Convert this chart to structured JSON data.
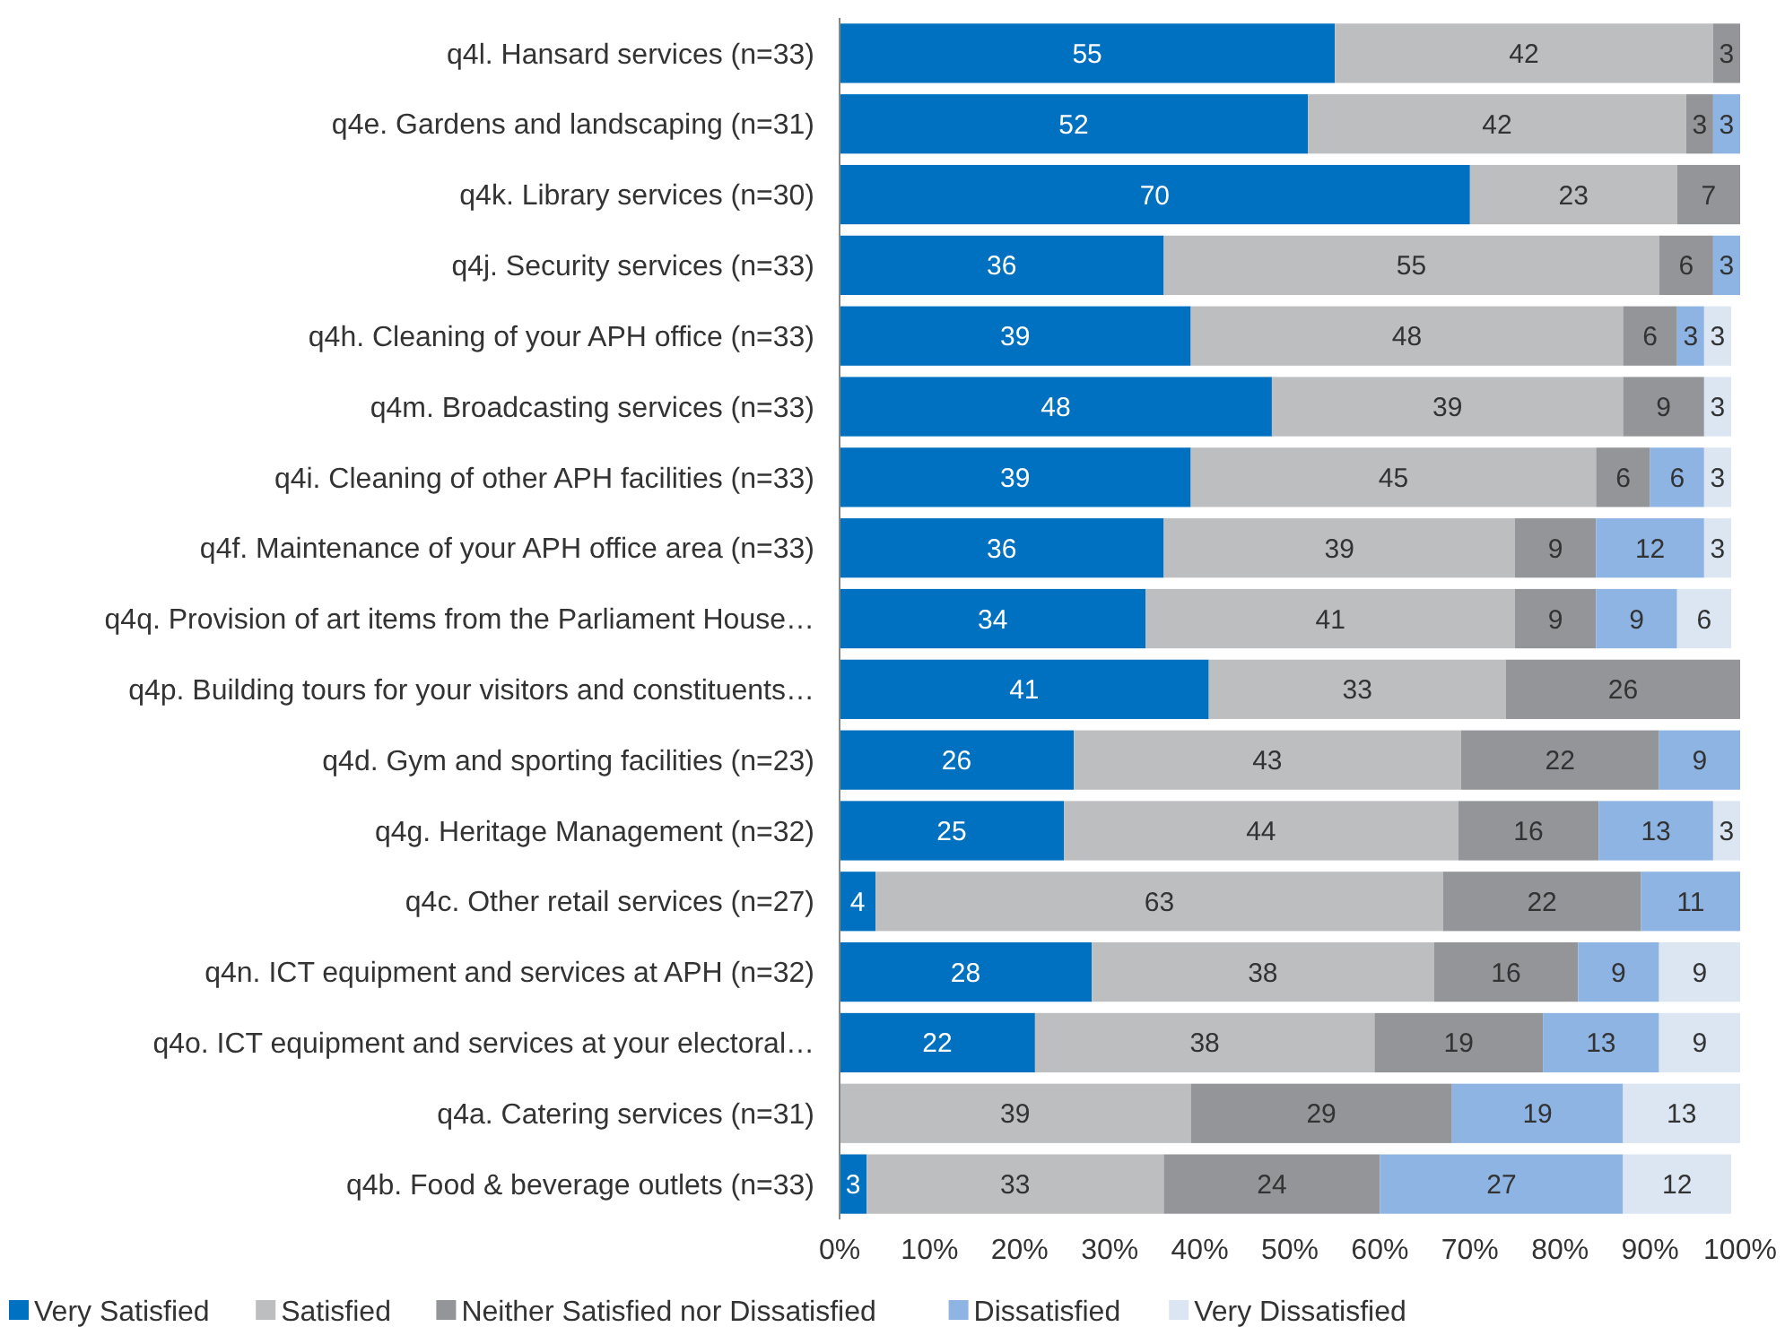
{
  "chart_data": {
    "type": "bar",
    "orientation": "horizontal",
    "stacked": true,
    "grid": false,
    "legend": "bottom",
    "categories": [
      "q4l. Hansard services (n=33)",
      "q4e. Gardens and landscaping (n=31)",
      "q4k. Library services (n=30)",
      "q4j. Security services (n=33)",
      "q4h. Cleaning of your APH office (n=33)",
      "q4m. Broadcasting services (n=33)",
      "q4i. Cleaning of other APH facilities (n=33)",
      "q4f. Maintenance of your APH office area (n=33)",
      "q4q. Provision of art items from the Parliament House…",
      "q4p. Building tours for your visitors and constituents…",
      "q4d. Gym and sporting facilities (n=23)",
      "q4g. Heritage Management (n=32)",
      "q4c. Other retail services (n=27)",
      "q4n. ICT equipment and services at APH (n=32)",
      "q4o. ICT equipment and services at your electoral…",
      "q4a. Catering services (n=31)",
      "q4b. Food & beverage outlets (n=33)"
    ],
    "xlim": [
      0,
      100
    ],
    "xticks": [
      {
        "value": 0,
        "label": "0%"
      },
      {
        "value": 10,
        "label": "10%"
      },
      {
        "value": 20,
        "label": "20%"
      },
      {
        "value": 30,
        "label": "30%"
      },
      {
        "value": 40,
        "label": "40%"
      },
      {
        "value": 50,
        "label": "50%"
      },
      {
        "value": 60,
        "label": "60%"
      },
      {
        "value": 70,
        "label": "70%"
      },
      {
        "value": 80,
        "label": "80%"
      },
      {
        "value": 90,
        "label": "90%"
      },
      {
        "value": 100,
        "label": "100%"
      }
    ],
    "series": [
      {
        "name": "Very Satisfied",
        "color": "#0070c0",
        "values": [
          55,
          52,
          70,
          36,
          39,
          48,
          39,
          36,
          34,
          41,
          26,
          24.9,
          4,
          28,
          21.7,
          null,
          3
        ],
        "value_labels": [
          "55",
          "52",
          "70",
          "36",
          "39",
          "48",
          "39",
          "36",
          "34",
          "41",
          "26",
          "25",
          "4",
          "28",
          "22",
          null,
          "3"
        ]
      },
      {
        "name": "Satisfied",
        "color": "#bdbec0",
        "values": [
          42,
          42,
          23,
          55,
          48,
          39,
          45,
          39,
          41,
          33,
          43,
          43.8,
          63,
          38,
          37.7,
          39,
          33
        ],
        "value_labels": [
          "42",
          "42",
          "23",
          "55",
          "48",
          "39",
          "45",
          "39",
          "41",
          "33",
          "43",
          "44",
          "63",
          "38",
          "38",
          "39",
          "33"
        ]
      },
      {
        "name": "Neither Satisfied nor Dissatisfied",
        "color": "#939598",
        "values": [
          3,
          3,
          7,
          6,
          6,
          9,
          6,
          9,
          9,
          26,
          22,
          15.6,
          22,
          16,
          18.7,
          29,
          24
        ],
        "value_labels": [
          "3",
          "3",
          "7",
          "6",
          "6",
          "9",
          "6",
          "9",
          "9",
          "26",
          "22",
          "16",
          "22",
          "16",
          "19",
          "29",
          "24"
        ]
      },
      {
        "name": "Dissatisfied",
        "color": "#8eb4e3",
        "values": [
          null,
          3,
          null,
          3,
          3,
          null,
          6,
          12,
          9,
          null,
          9,
          12.7,
          11,
          9,
          12.9,
          19,
          27
        ],
        "value_labels": [
          null,
          "3",
          null,
          "3",
          "3",
          null,
          "6",
          "12",
          "9",
          null,
          "9",
          "13",
          "11",
          "9",
          "13",
          "19",
          "27"
        ]
      },
      {
        "name": "Very Dissatisfied",
        "color": "#dce6f2",
        "values": [
          null,
          null,
          null,
          null,
          3,
          3,
          3,
          3,
          6,
          null,
          null,
          3,
          null,
          9,
          9,
          13,
          12
        ],
        "value_labels": [
          null,
          null,
          null,
          null,
          "3",
          "3",
          "3",
          "3",
          "6",
          null,
          null,
          "3",
          null,
          "9",
          "9",
          "13",
          "12"
        ]
      }
    ]
  }
}
